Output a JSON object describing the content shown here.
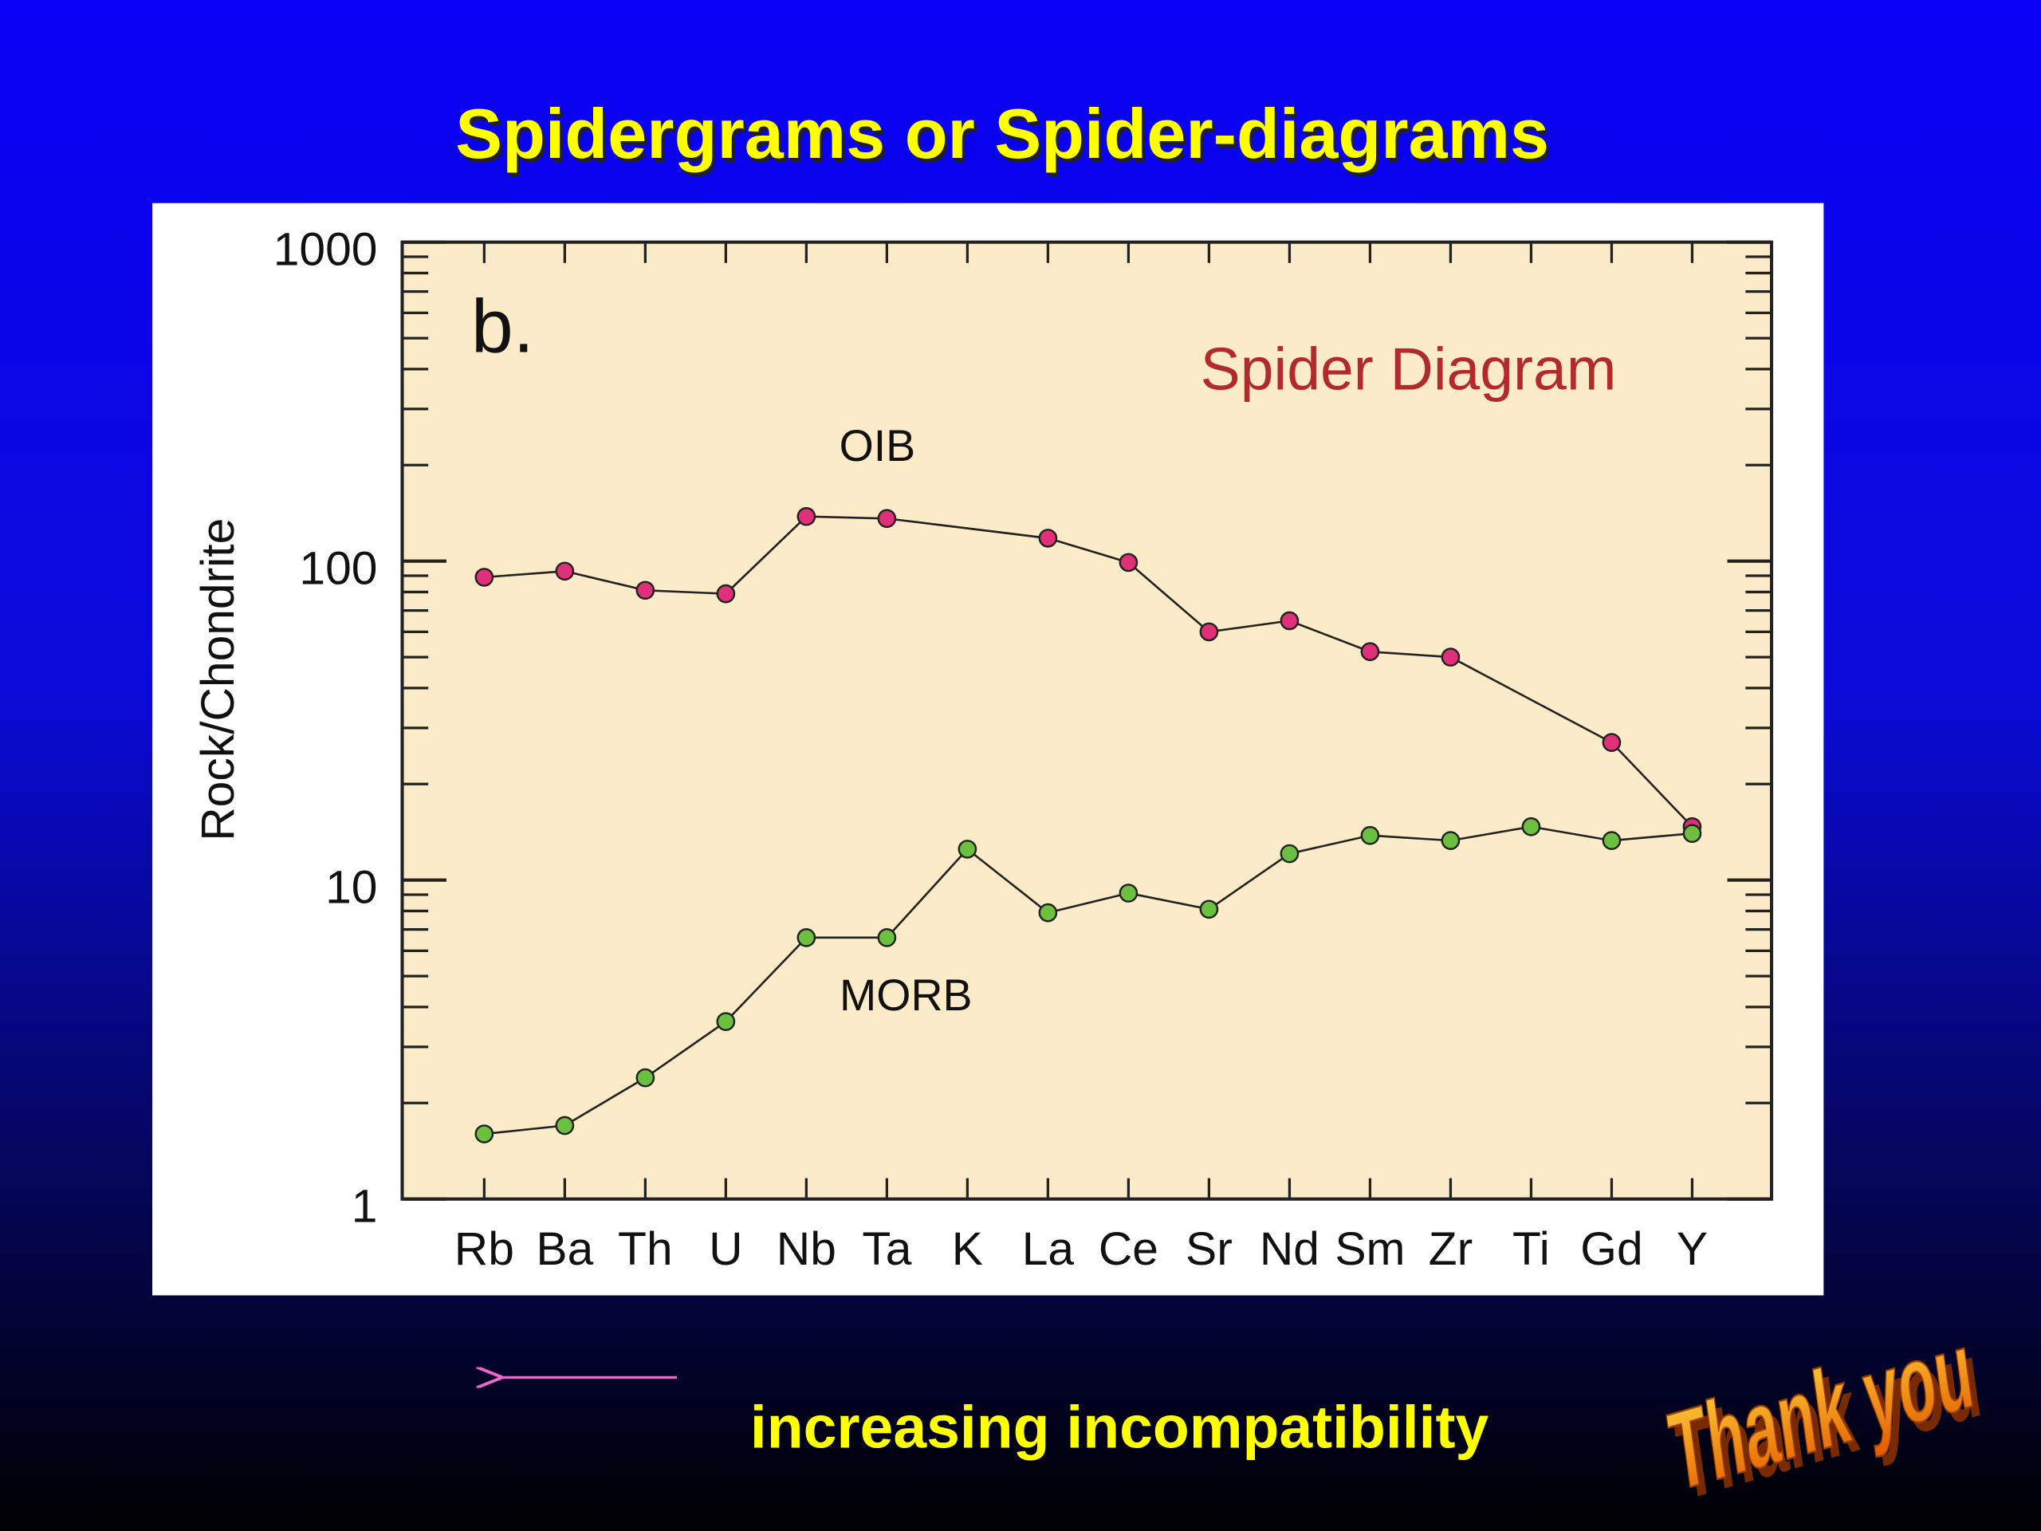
{
  "title": "Spidergrams or Spider-diagrams",
  "chart_data": {
    "type": "line",
    "panel_label": "b.",
    "annotation": "Spider Diagram",
    "ylabel": "Rock/Chondrite",
    "categories": [
      "Rb",
      "Ba",
      "Th",
      "U",
      "Nb",
      "Ta",
      "K",
      "La",
      "Ce",
      "Sr",
      "Nd",
      "Sm",
      "Zr",
      "Ti",
      "Gd",
      "Y"
    ],
    "series": [
      {
        "name": "OIB",
        "color": "#e0307a",
        "values": [
          89,
          93,
          81,
          79,
          138,
          136,
          null,
          118,
          99,
          60,
          65,
          52,
          50,
          null,
          27,
          14.7
        ]
      },
      {
        "name": "MORB",
        "color": "#6cc040",
        "values": [
          1.6,
          1.7,
          2.4,
          3.6,
          6.6,
          6.6,
          12.5,
          7.9,
          9.1,
          8.1,
          12.1,
          13.8,
          13.3,
          14.7,
          13.3,
          14.0
        ]
      }
    ],
    "ylim": [
      1,
      1000
    ],
    "yticks": [
      1,
      10,
      100,
      1000
    ],
    "log_scale": true
  },
  "footer": "increasing incompatibility",
  "closing": "Thank you"
}
